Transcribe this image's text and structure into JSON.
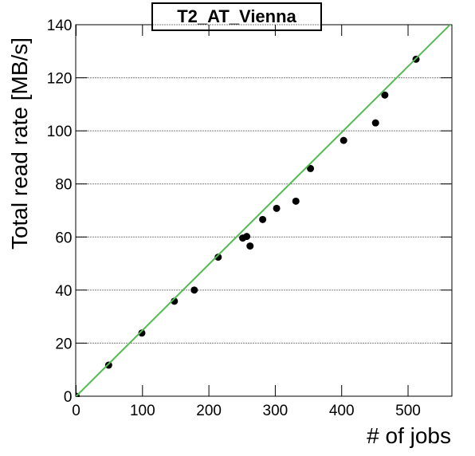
{
  "chart_data": {
    "type": "scatter",
    "title": "T2_AT_Vienna",
    "xlabel": "# of jobs",
    "ylabel": "Total read rate [MB/s]",
    "xlim": [
      0,
      566
    ],
    "ylim": [
      0,
      140
    ],
    "xticks": [
      0,
      100,
      200,
      300,
      400,
      500
    ],
    "yticks": [
      0,
      20,
      40,
      60,
      80,
      100,
      120,
      140
    ],
    "grid": true,
    "series": [
      {
        "color": "#000000",
        "style": "points",
        "x": [
          0,
          49,
          99,
          148,
          178,
          214,
          251,
          257,
          262,
          281,
          302,
          331,
          353,
          403,
          451,
          465,
          512
        ],
        "values": [
          0,
          11.7,
          23.8,
          35.8,
          40,
          52.4,
          59.6,
          60.2,
          56.6,
          66.6,
          70.8,
          73.5,
          85.8,
          96.4,
          103,
          113.5,
          127
        ]
      },
      {
        "color": "#55bb55",
        "style": "line",
        "x": [
          0,
          566
        ],
        "values": [
          0,
          140.7
        ]
      }
    ]
  }
}
